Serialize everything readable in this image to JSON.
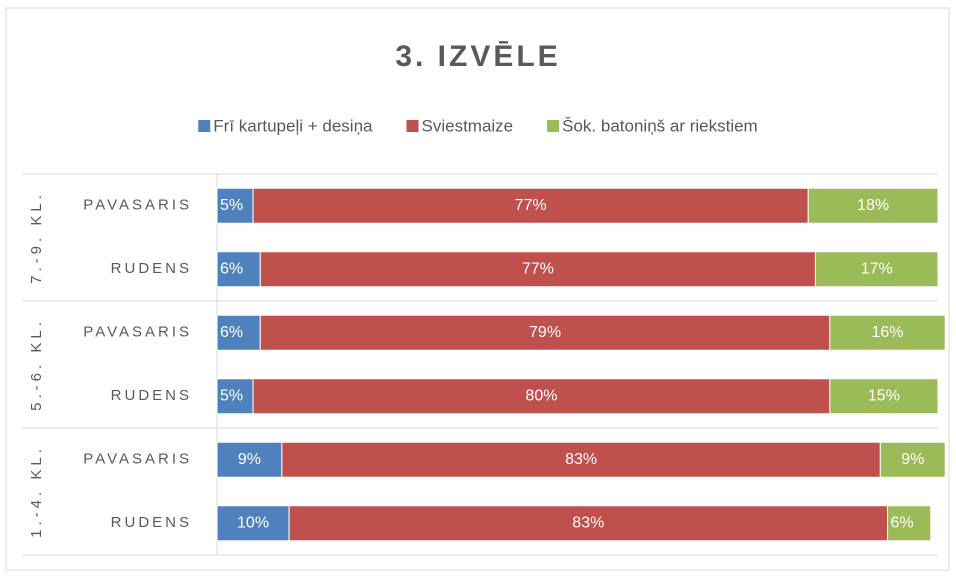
{
  "chart_data": {
    "type": "stacked-bar-horizontal",
    "title": "3. IZVĒLE",
    "groups": [
      {
        "label": "7.-9. KL.",
        "categories": [
          "PAVASARIS",
          "RUDENS"
        ]
      },
      {
        "label": "5.-6. KL.",
        "categories": [
          "PAVASARIS",
          "RUDENS"
        ]
      },
      {
        "label": "1.-4. KL.",
        "categories": [
          "PAVASARIS",
          "RUDENS"
        ]
      }
    ],
    "xlim": [
      0,
      100
    ],
    "series": [
      {
        "name": "Frī kartupeļi + desiņa",
        "color": "#4f81bd",
        "values": [
          5,
          6,
          6,
          5,
          9,
          10
        ],
        "value_labels": [
          "5%",
          "6%",
          "6%",
          "5%",
          "9%",
          "10%"
        ]
      },
      {
        "name": "Sviestmaize",
        "color": "#c0504d",
        "values": [
          77,
          77,
          79,
          80,
          83,
          83
        ],
        "value_labels": [
          "77%",
          "77%",
          "79%",
          "80%",
          "83%",
          "83%"
        ]
      },
      {
        "name": "Šok. batoniņš ar riekstiem",
        "color": "#9bbb59",
        "values": [
          18,
          17,
          16,
          15,
          9,
          6
        ],
        "value_labels": [
          "18%",
          "17%",
          "16%",
          "15%",
          "9%",
          "6%"
        ]
      }
    ],
    "legend": "top"
  }
}
